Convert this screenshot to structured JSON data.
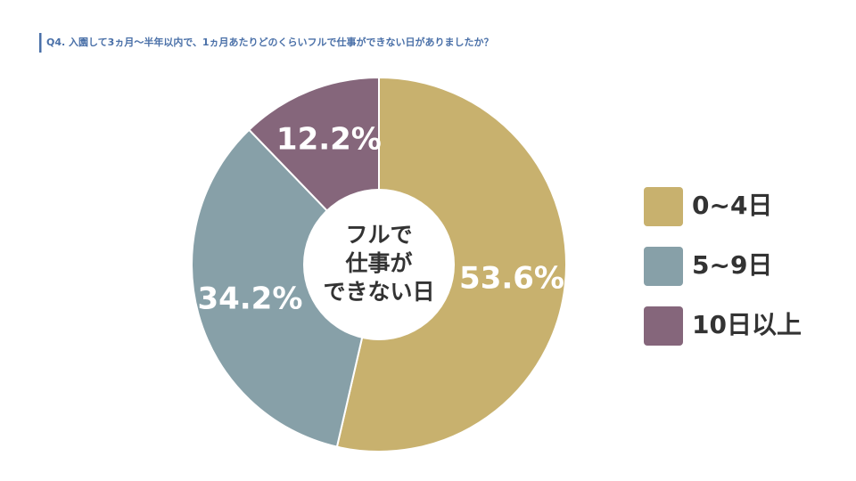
{
  "chart_data": {
    "type": "donut",
    "title": "Q4. 入園して3ヵ月〜半年以内で、1ヵ月あたりどのくらいフルで仕事ができない日がありましたか？",
    "center_text": [
      "フルで",
      "仕事が",
      "できない日"
    ],
    "categories": [
      "0~4日",
      "5~9日",
      "10日以上"
    ],
    "values": [
      53.6,
      34.2,
      12.2
    ],
    "value_labels": [
      "53.6%",
      "34.2%",
      "12.2%"
    ],
    "colors": [
      "#c8b16e",
      "#87a0a8",
      "#85667b"
    ],
    "legend": "right"
  }
}
